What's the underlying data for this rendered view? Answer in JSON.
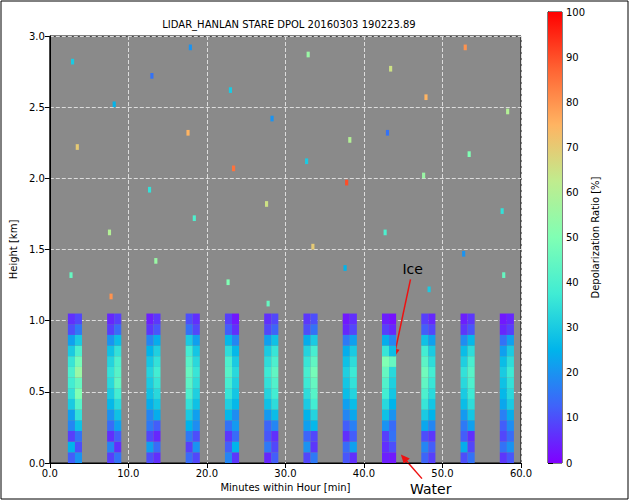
{
  "chart_data": {
    "type": "heatmap",
    "title": "LIDAR_HANLAN STARE DPOL 20160303 190223.89",
    "x_label": "Minutes within Hour [min]",
    "y_label": "Height [km]",
    "xlim": [
      0,
      60
    ],
    "xticks": [
      {
        "value": 0,
        "label": "0.0"
      },
      {
        "value": 10,
        "label": "10.0"
      },
      {
        "value": 20,
        "label": "20.0"
      },
      {
        "value": 30,
        "label": "30.0"
      },
      {
        "value": 40,
        "label": "40.0"
      },
      {
        "value": 50,
        "label": "50.0"
      },
      {
        "value": 60,
        "label": "60.0"
      }
    ],
    "ylim": [
      0,
      3
    ],
    "yticks": [
      {
        "value": 0,
        "label": "0.0"
      },
      {
        "value": 0.5,
        "label": "0.5"
      },
      {
        "value": 1,
        "label": "1.0"
      },
      {
        "value": 1.5,
        "label": "1.5"
      },
      {
        "value": 2,
        "label": "2.0"
      },
      {
        "value": 2.5,
        "label": "2.5"
      },
      {
        "value": 3,
        "label": "3.0"
      }
    ],
    "grid": true,
    "colorbar": {
      "label": "Depolarization Ratio [%]",
      "range": [
        0,
        100
      ],
      "ticks": [
        0,
        10,
        20,
        30,
        40,
        50,
        60,
        70,
        80,
        90,
        100
      ]
    },
    "x_bins": [
      [
        2.3,
        3.2
      ],
      [
        3.2,
        4.1
      ],
      [
        7.3,
        8.2
      ],
      [
        8.2,
        9.1
      ],
      [
        12.3,
        13.2
      ],
      [
        13.2,
        14.1
      ],
      [
        17.3,
        18.2
      ],
      [
        18.2,
        19.1
      ],
      [
        22.3,
        23.2
      ],
      [
        23.2,
        24.1
      ],
      [
        27.3,
        28.2
      ],
      [
        28.2,
        29.1
      ],
      [
        32.3,
        33.2
      ],
      [
        33.2,
        34.1
      ],
      [
        37.3,
        38.2
      ],
      [
        38.2,
        39.1
      ],
      [
        42.3,
        43.2
      ],
      [
        43.2,
        44.1
      ],
      [
        47.3,
        48.2
      ],
      [
        48.2,
        49.1
      ],
      [
        52.3,
        53.2
      ],
      [
        53.2,
        54.1
      ],
      [
        57.3,
        58.2
      ],
      [
        58.2,
        59.1
      ]
    ],
    "y_edges": [
      0,
      0.075,
      0.15,
      0.225,
      0.3,
      0.375,
      0.45,
      0.525,
      0.6,
      0.675,
      0.75,
      0.825,
      0.9,
      0.975,
      1.05
    ],
    "values": [
      [
        12,
        20,
        8,
        15,
        10,
        6,
        14,
        9,
        18,
        7,
        5,
        12,
        9,
        16,
        11,
        6,
        4,
        3,
        13,
        8,
        10,
        15,
        7,
        11
      ],
      [
        25,
        10,
        18,
        6,
        22,
        14,
        8,
        20,
        12,
        25,
        16,
        9,
        20,
        7,
        14,
        22,
        6,
        10,
        18,
        12,
        24,
        9,
        15,
        20
      ],
      [
        8,
        15,
        6,
        12,
        9,
        5,
        16,
        10,
        7,
        14,
        11,
        6,
        13,
        9,
        6,
        12,
        8,
        15,
        10,
        7,
        12,
        6,
        9,
        14
      ],
      [
        18,
        28,
        14,
        22,
        16,
        12,
        25,
        19,
        15,
        21,
        13,
        18,
        22,
        26,
        12,
        17,
        20,
        14,
        23,
        18,
        16,
        22,
        12,
        19
      ],
      [
        22,
        35,
        20,
        28,
        18,
        24,
        30,
        22,
        26,
        19,
        21,
        27,
        25,
        32,
        18,
        23,
        28,
        20,
        30,
        25,
        21,
        29,
        17,
        24
      ],
      [
        30,
        42,
        26,
        33,
        24,
        29,
        35,
        28,
        31,
        26,
        28,
        34,
        30,
        38,
        22,
        27,
        33,
        25,
        36,
        29,
        27,
        34,
        23,
        30
      ],
      [
        35,
        50,
        30,
        38,
        28,
        33,
        40,
        31,
        36,
        29,
        32,
        38,
        34,
        42,
        27,
        32,
        38,
        29,
        40,
        33,
        30,
        37,
        26,
        33
      ],
      [
        38,
        45,
        33,
        44,
        30,
        36,
        43,
        34,
        39,
        31,
        35,
        41,
        37,
        45,
        29,
        35,
        41,
        31,
        44,
        36,
        33,
        40,
        28,
        35
      ],
      [
        40,
        55,
        35,
        42,
        32,
        38,
        45,
        36,
        42,
        33,
        37,
        44,
        39,
        48,
        31,
        37,
        45,
        33,
        47,
        38,
        35,
        42,
        30,
        37
      ],
      [
        36,
        48,
        32,
        40,
        29,
        35,
        42,
        33,
        40,
        30,
        34,
        40,
        36,
        44,
        28,
        34,
        50,
        45,
        43,
        34,
        31,
        39,
        27,
        34
      ],
      [
        30,
        40,
        28,
        35,
        25,
        31,
        38,
        29,
        34,
        26,
        30,
        36,
        32,
        39,
        24,
        30,
        36,
        27,
        38,
        30,
        27,
        34,
        22,
        30
      ],
      [
        22,
        30,
        20,
        27,
        18,
        24,
        30,
        22,
        26,
        18,
        22,
        28,
        24,
        30,
        16,
        22,
        24,
        18,
        28,
        22,
        19,
        26,
        15,
        22
      ],
      [
        10,
        16,
        8,
        14,
        7,
        11,
        15,
        9,
        12,
        6,
        9,
        13,
        10,
        15,
        5,
        9,
        8,
        5,
        12,
        9,
        7,
        11,
        5,
        8
      ],
      [
        6,
        9,
        5,
        8,
        4,
        7,
        10,
        6,
        8,
        3,
        6,
        9,
        7,
        10,
        3,
        6,
        4,
        2,
        8,
        5,
        4,
        7,
        3,
        5
      ]
    ],
    "speckles": [
      [
        2.5,
        2.9,
        1.3,
        1.34,
        45
      ],
      [
        3.3,
        3.7,
        2.2,
        2.24,
        70
      ],
      [
        2.7,
        3.1,
        2.8,
        2.84,
        30
      ],
      [
        7.4,
        7.8,
        1.6,
        1.64,
        60
      ],
      [
        8.0,
        8.4,
        2.5,
        2.54,
        25
      ],
      [
        7.6,
        8.0,
        1.15,
        1.19,
        80
      ],
      [
        12.5,
        12.9,
        1.9,
        1.94,
        35
      ],
      [
        13.3,
        13.7,
        1.4,
        1.44,
        55
      ],
      [
        12.8,
        13.2,
        2.7,
        2.74,
        15
      ],
      [
        17.4,
        17.8,
        2.3,
        2.34,
        75
      ],
      [
        18.2,
        18.6,
        1.7,
        1.74,
        40
      ],
      [
        17.7,
        18.1,
        2.9,
        2.94,
        20
      ],
      [
        22.5,
        22.9,
        1.25,
        1.29,
        50
      ],
      [
        23.2,
        23.6,
        2.05,
        2.09,
        85
      ],
      [
        22.8,
        23.2,
        2.6,
        2.64,
        30
      ],
      [
        27.4,
        27.8,
        1.8,
        1.84,
        65
      ],
      [
        28.1,
        28.5,
        2.4,
        2.44,
        20
      ],
      [
        27.6,
        28.0,
        1.1,
        1.14,
        45
      ],
      [
        32.5,
        32.9,
        2.1,
        2.14,
        30
      ],
      [
        33.3,
        33.7,
        1.5,
        1.54,
        70
      ],
      [
        32.7,
        33.1,
        2.85,
        2.89,
        55
      ],
      [
        37.4,
        37.8,
        1.35,
        1.39,
        25
      ],
      [
        38.0,
        38.4,
        2.25,
        2.29,
        60
      ],
      [
        37.6,
        38.0,
        1.95,
        1.99,
        90
      ],
      [
        42.5,
        42.9,
        1.6,
        1.64,
        40
      ],
      [
        43.2,
        43.6,
        2.75,
        2.79,
        65
      ],
      [
        42.8,
        43.2,
        2.3,
        2.34,
        15
      ],
      [
        47.4,
        47.8,
        2.0,
        2.04,
        55
      ],
      [
        48.1,
        48.5,
        1.2,
        1.24,
        30
      ],
      [
        47.7,
        48.1,
        2.55,
        2.59,
        75
      ],
      [
        52.5,
        52.9,
        1.45,
        1.49,
        20
      ],
      [
        53.2,
        53.6,
        2.15,
        2.19,
        50
      ],
      [
        52.7,
        53.1,
        2.9,
        2.94,
        80
      ],
      [
        57.4,
        57.8,
        1.75,
        1.79,
        35
      ],
      [
        58.1,
        58.5,
        2.45,
        2.49,
        60
      ],
      [
        57.6,
        58.0,
        1.3,
        1.34,
        45
      ]
    ],
    "annotations": [
      {
        "text": "Ice",
        "xy": [
          43.8,
          0.74
        ],
        "xytext": [
          46.2,
          1.36
        ]
      },
      {
        "text": "Water",
        "xy": [
          44.7,
          0.06
        ],
        "xytext": [
          48.5,
          -0.18
        ]
      }
    ]
  }
}
